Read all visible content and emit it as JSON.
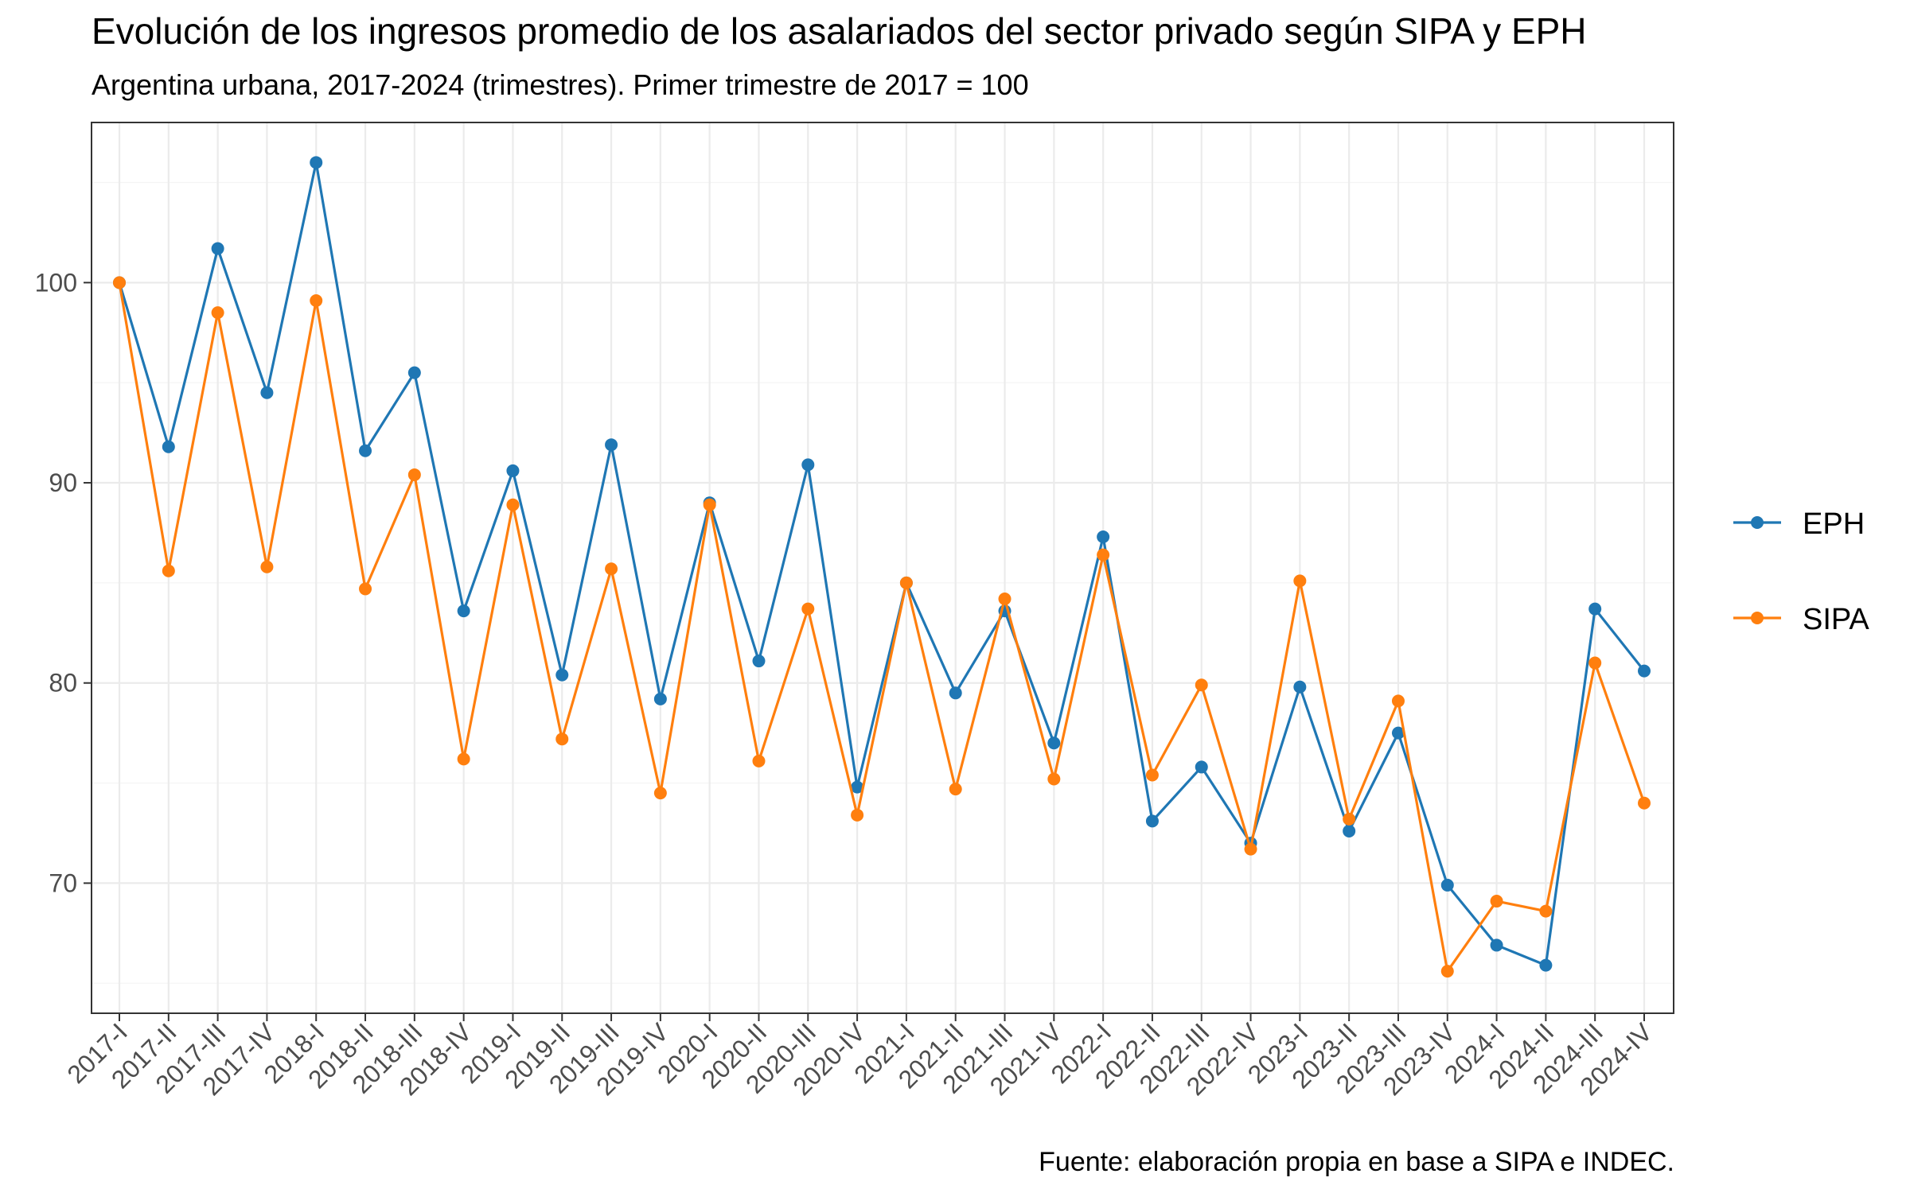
{
  "chart_data": {
    "type": "line",
    "title": "Evolución de los ingresos promedio de los asalariados del sector privado según SIPA y EPH",
    "subtitle": "Argentina urbana, 2017-2024 (trimestres). Primer trimestre de 2017 = 100",
    "caption": "Fuente: elaboración propia en base a SIPA e INDEC.",
    "xlabel": "",
    "ylabel": "",
    "ylim": [
      63.5,
      108
    ],
    "yticks": [
      70,
      80,
      90,
      100
    ],
    "grid": true,
    "legend_position": "right",
    "categories": [
      "2017-I",
      "2017-II",
      "2017-III",
      "2017-IV",
      "2018-I",
      "2018-II",
      "2018-III",
      "2018-IV",
      "2019-I",
      "2019-II",
      "2019-III",
      "2019-IV",
      "2020-I",
      "2020-II",
      "2020-III",
      "2020-IV",
      "2021-I",
      "2021-II",
      "2021-III",
      "2021-IV",
      "2022-I",
      "2022-II",
      "2022-III",
      "2022-IV",
      "2023-I",
      "2023-II",
      "2023-III",
      "2023-IV",
      "2024-I",
      "2024-II",
      "2024-III",
      "2024-IV"
    ],
    "series": [
      {
        "name": "EPH",
        "color": "#1f77b4",
        "values": [
          100.0,
          91.8,
          101.7,
          94.5,
          106.0,
          91.6,
          95.5,
          83.6,
          90.6,
          80.4,
          91.9,
          79.2,
          89.0,
          81.1,
          90.9,
          74.8,
          85.0,
          79.5,
          83.6,
          77.0,
          87.3,
          73.1,
          75.8,
          72.0,
          79.8,
          72.6,
          77.5,
          69.9,
          66.9,
          65.9,
          83.7,
          80.6
        ]
      },
      {
        "name": "SIPA",
        "color": "#ff7f0e",
        "values": [
          100.0,
          85.6,
          98.5,
          85.8,
          99.1,
          84.7,
          90.4,
          76.2,
          88.9,
          77.2,
          85.7,
          74.5,
          88.9,
          76.1,
          83.7,
          73.4,
          85.0,
          74.7,
          84.2,
          75.2,
          86.4,
          75.4,
          79.9,
          71.7,
          85.1,
          73.2,
          79.1,
          65.6,
          69.1,
          68.6,
          81.0,
          74.0
        ]
      }
    ]
  }
}
